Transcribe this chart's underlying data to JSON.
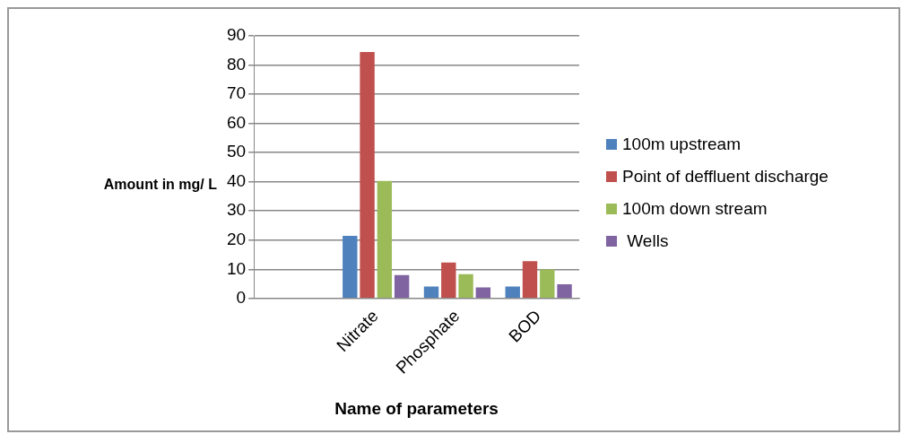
{
  "chart_data": {
    "type": "bar",
    "xlabel": "Name of parameters",
    "ylabel": "Amount in mg/ L",
    "categories": [
      null,
      "Nitrate",
      "Phosphate",
      "BOD"
    ],
    "series": [
      {
        "name": "100m upstream",
        "color": "#4f81bd",
        "values": [
          null,
          21.5,
          4.1,
          4.1
        ]
      },
      {
        "name": "Point of deffluent discharge",
        "color": "#c0504d",
        "values": [
          null,
          84.5,
          12.3,
          12.8
        ]
      },
      {
        "name": "100m down stream",
        "color": "#9bbb59",
        "values": [
          null,
          40.3,
          8.3,
          9.9
        ]
      },
      {
        "name": " Wells",
        "color": "#8064a2",
        "values": [
          null,
          8.0,
          3.8,
          4.9
        ]
      }
    ],
    "ylim": [
      0,
      90
    ],
    "yticks": [
      0,
      10,
      20,
      30,
      40,
      50,
      60,
      70,
      80,
      90
    ],
    "grid": "y",
    "legend": "right"
  }
}
